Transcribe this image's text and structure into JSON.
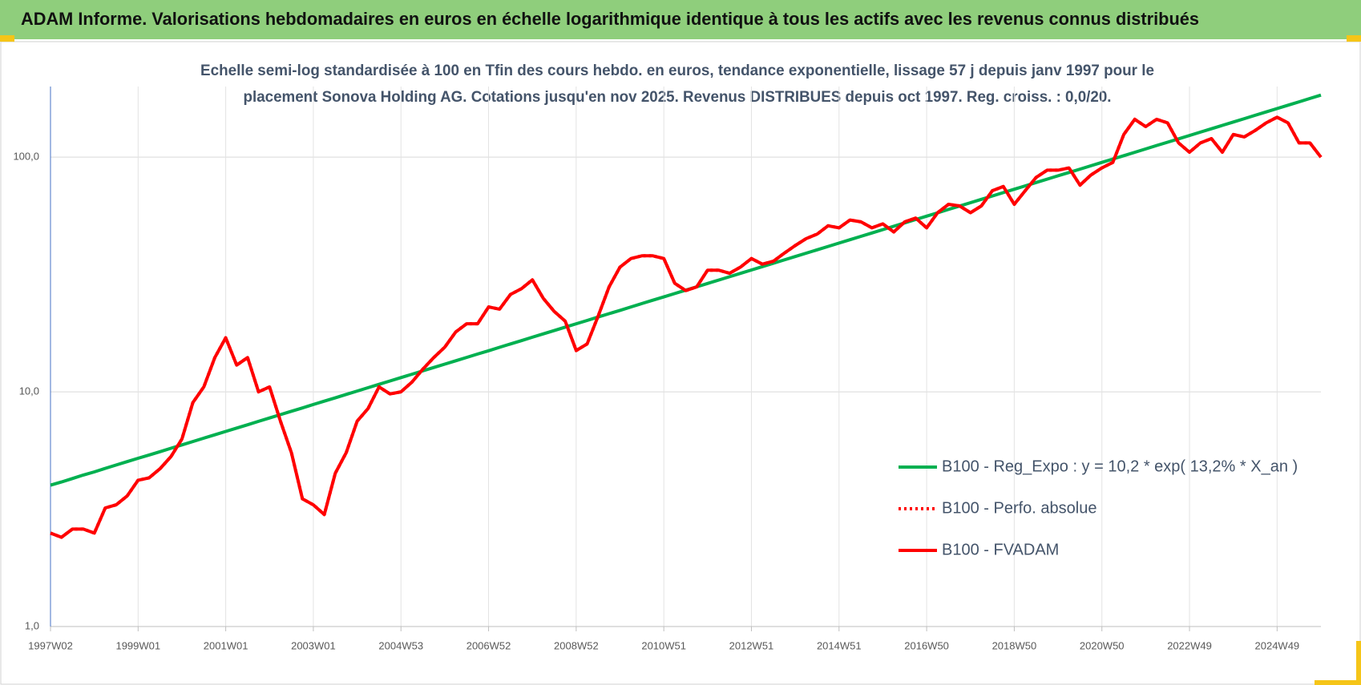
{
  "header": {
    "title": "ADAM Informe. Valorisations hebdomadaires en euros en échelle logarithmique identique à tous les actifs avec les revenus connus distribués"
  },
  "chart_data": {
    "type": "line",
    "title": [
      "Echelle semi-log standardisée à 100 en Tfin des cours hebdo. en euros, tendance exponentielle, lissage 57 j depuis janv 1997 pour le",
      "placement Sonova Holding AG. Cotations jusqu'en nov 2025. Revenus DISTRIBUES depuis oct 1997. Reg. croiss. : 0,0/20."
    ],
    "log_scale": true,
    "grid": true,
    "legend": "lower right",
    "ylim": [
      1,
      200
    ],
    "yticks": [
      {
        "value": 1,
        "label": "1,0"
      },
      {
        "value": 10,
        "label": "10,0"
      },
      {
        "value": 100,
        "label": "100,0"
      }
    ],
    "categories": [
      "1997W02",
      null,
      null,
      null,
      null,
      null,
      null,
      null,
      "1999W01",
      null,
      null,
      null,
      null,
      null,
      null,
      null,
      "2001W01",
      null,
      null,
      null,
      null,
      null,
      null,
      null,
      "2003W01",
      null,
      null,
      null,
      null,
      null,
      null,
      null,
      "2004W53",
      null,
      null,
      null,
      null,
      null,
      null,
      null,
      "2006W52",
      null,
      null,
      null,
      null,
      null,
      null,
      null,
      "2008W52",
      null,
      null,
      null,
      null,
      null,
      null,
      null,
      "2010W51",
      null,
      null,
      null,
      null,
      null,
      null,
      null,
      "2012W51",
      null,
      null,
      null,
      null,
      null,
      null,
      null,
      "2014W51",
      null,
      null,
      null,
      null,
      null,
      null,
      null,
      "2016W50",
      null,
      null,
      null,
      null,
      null,
      null,
      null,
      "2018W50",
      null,
      null,
      null,
      null,
      null,
      null,
      null,
      "2020W50",
      null,
      null,
      null,
      null,
      null,
      null,
      null,
      "2022W49",
      null,
      null,
      null,
      null,
      null,
      null,
      null,
      "2024W49",
      null,
      null,
      null,
      null
    ],
    "series": [
      {
        "name": "B100 - Reg_Expo : y = 10,2 * exp( 13,2% *  X_an )",
        "color": "#00b050",
        "style": "solid",
        "values": [
          4.0,
          4.13,
          4.27,
          4.42,
          4.56,
          4.72,
          4.88,
          5.04,
          5.21,
          5.38,
          5.56,
          5.75,
          5.94,
          6.14,
          6.35,
          6.56,
          6.78,
          7.01,
          7.24,
          7.49,
          7.74,
          8.0,
          8.27,
          8.54,
          8.83,
          9.13,
          9.43,
          9.75,
          10.08,
          10.42,
          10.77,
          11.13,
          11.5,
          11.89,
          12.29,
          12.7,
          13.12,
          13.56,
          14.02,
          14.49,
          14.97,
          15.48,
          16.0,
          16.53,
          17.09,
          17.66,
          18.25,
          18.87,
          19.5,
          20.15,
          20.83,
          21.53,
          22.25,
          23.0,
          23.77,
          24.57,
          25.39,
          26.24,
          27.12,
          28.03,
          28.97,
          29.94,
          30.95,
          31.99,
          33.06,
          34.17,
          35.31,
          36.5,
          37.72,
          38.99,
          40.3,
          41.65,
          43.05,
          44.49,
          45.98,
          47.53,
          49.12,
          50.77,
          52.47,
          54.23,
          56.05,
          57.93,
          59.88,
          61.88,
          63.96,
          66.1,
          68.32,
          70.61,
          72.98,
          75.43,
          77.96,
          80.58,
          83.28,
          86.07,
          88.96,
          91.94,
          95.03,
          98.22,
          101.5,
          104.9,
          108.4,
          112.1,
          115.8,
          119.7,
          123.7,
          127.9,
          132.2,
          136.6,
          141.2,
          145.9,
          150.8,
          155.9,
          161.1,
          166.5,
          172.1,
          177.9,
          183.8
        ]
      },
      {
        "name": "B100 - Perfo. absolue",
        "color": "#ff0000",
        "style": "dotted",
        "values": [
          2.5,
          2.4,
          2.6,
          2.6,
          2.5,
          3.2,
          3.3,
          3.6,
          4.2,
          4.3,
          4.7,
          5.3,
          6.3,
          9.0,
          10.5,
          14,
          17,
          13,
          14,
          10,
          10.5,
          7.5,
          5.5,
          3.5,
          3.3,
          3.0,
          4.5,
          5.5,
          7.5,
          8.5,
          10.5,
          9.8,
          10,
          11,
          12.5,
          14,
          15.5,
          18,
          19.5,
          19.5,
          23,
          22.5,
          26,
          27.5,
          30,
          25,
          22,
          20,
          15,
          16,
          21,
          28,
          34,
          37,
          38,
          38,
          37,
          29,
          27,
          28,
          33,
          33,
          32,
          34,
          37,
          35,
          36,
          39,
          42,
          45,
          47,
          51,
          50,
          54,
          53,
          50,
          52,
          48,
          53,
          55,
          50,
          58,
          63,
          62,
          58,
          62,
          72,
          75,
          63,
          72,
          82,
          88,
          88,
          90,
          76,
          84,
          90,
          95,
          125,
          145,
          135,
          145,
          140,
          115,
          105,
          115,
          120,
          105,
          125,
          122,
          130,
          140,
          148,
          140,
          115,
          115,
          100
        ]
      },
      {
        "name": "B100 - FVADAM",
        "color": "#ff0000",
        "style": "solid",
        "values": [
          2.5,
          2.4,
          2.6,
          2.6,
          2.5,
          3.2,
          3.3,
          3.6,
          4.2,
          4.3,
          4.7,
          5.3,
          6.3,
          9.0,
          10.5,
          14,
          17,
          13,
          14,
          10,
          10.5,
          7.5,
          5.5,
          3.5,
          3.3,
          3.0,
          4.5,
          5.5,
          7.5,
          8.5,
          10.5,
          9.8,
          10,
          11,
          12.5,
          14,
          15.5,
          18,
          19.5,
          19.5,
          23,
          22.5,
          26,
          27.5,
          30,
          25,
          22,
          20,
          15,
          16,
          21,
          28,
          34,
          37,
          38,
          38,
          37,
          29,
          27,
          28,
          33,
          33,
          32,
          34,
          37,
          35,
          36,
          39,
          42,
          45,
          47,
          51,
          50,
          54,
          53,
          50,
          52,
          48,
          53,
          55,
          50,
          58,
          63,
          62,
          58,
          62,
          72,
          75,
          63,
          72,
          82,
          88,
          88,
          90,
          76,
          84,
          90,
          95,
          125,
          145,
          135,
          145,
          140,
          115,
          105,
          115,
          120,
          105,
          125,
          122,
          130,
          140,
          148,
          140,
          115,
          115,
          100
        ]
      }
    ]
  }
}
